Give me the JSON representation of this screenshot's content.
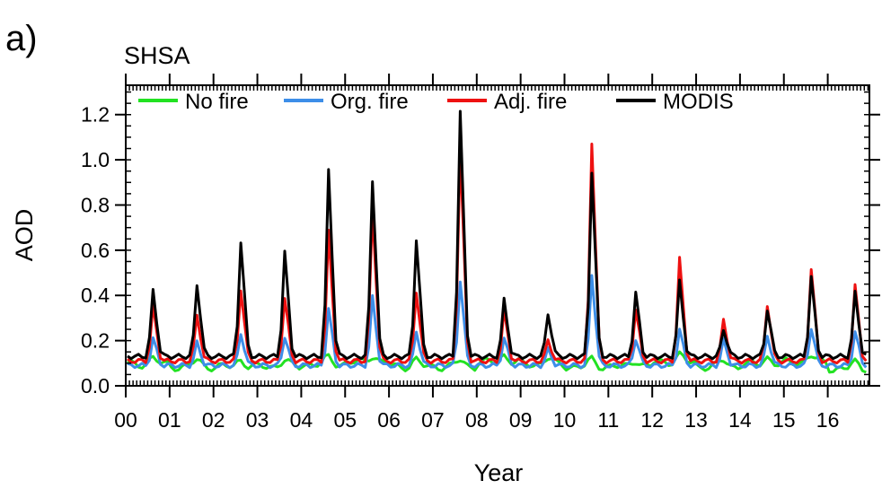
{
  "panel_label": "a)",
  "chart_data": {
    "type": "line",
    "title": "SHSA",
    "xlabel": "Year",
    "ylabel": "AOD",
    "xlim": [
      2000.0,
      2016.95
    ],
    "ylim": [
      0.0,
      1.33
    ],
    "x_tick_labels": [
      "00",
      "01",
      "02",
      "03",
      "04",
      "05",
      "06",
      "07",
      "08",
      "09",
      "10",
      "11",
      "12",
      "13",
      "14",
      "15",
      "16"
    ],
    "y_tick_labels": [
      "0.0",
      "0.2",
      "0.4",
      "0.6",
      "0.8",
      "1.0",
      "1.2"
    ],
    "y_ticks": [
      0.0,
      0.2,
      0.4,
      0.6,
      0.8,
      1.0,
      1.2
    ],
    "grid": false,
    "legend_position": "top",
    "peak_month_fraction": 0.58,
    "series": [
      {
        "name": "No fire",
        "color": "#22e222",
        "values_kind": "baseline",
        "values": [
          0.13,
          0.12,
          0.12,
          0.12,
          0.13,
          0.14,
          0.12,
          0.12,
          0.14,
          0.13,
          0.12,
          0.12,
          0.14,
          0.12,
          0.13,
          0.14,
          0.11
        ]
      },
      {
        "name": "Org. fire",
        "color": "#3d8ee8",
        "values_kind": "annual_peak",
        "values": [
          0.21,
          0.19,
          0.23,
          0.22,
          0.34,
          0.39,
          0.24,
          0.47,
          0.21,
          0.16,
          0.49,
          0.21,
          0.25,
          0.2,
          0.22,
          0.26,
          0.24
        ]
      },
      {
        "name": "Adj. fire",
        "color": "#ee1111",
        "values_kind": "annual_peak",
        "values": [
          0.35,
          0.31,
          0.43,
          0.39,
          0.68,
          0.78,
          0.42,
          1.05,
          0.33,
          0.2,
          1.08,
          0.34,
          0.56,
          0.29,
          0.36,
          0.52,
          0.44
        ]
      },
      {
        "name": "MODIS",
        "color": "#000000",
        "values_kind": "annual_peak",
        "values": [
          0.42,
          0.45,
          0.64,
          0.59,
          0.95,
          0.91,
          0.65,
          1.21,
          0.38,
          0.32,
          0.95,
          0.41,
          0.46,
          0.25,
          0.34,
          0.48,
          0.41
        ]
      }
    ],
    "background_aod": {
      "Org. fire": 0.09,
      "Adj. fire": 0.11,
      "MODIS": 0.13
    }
  }
}
